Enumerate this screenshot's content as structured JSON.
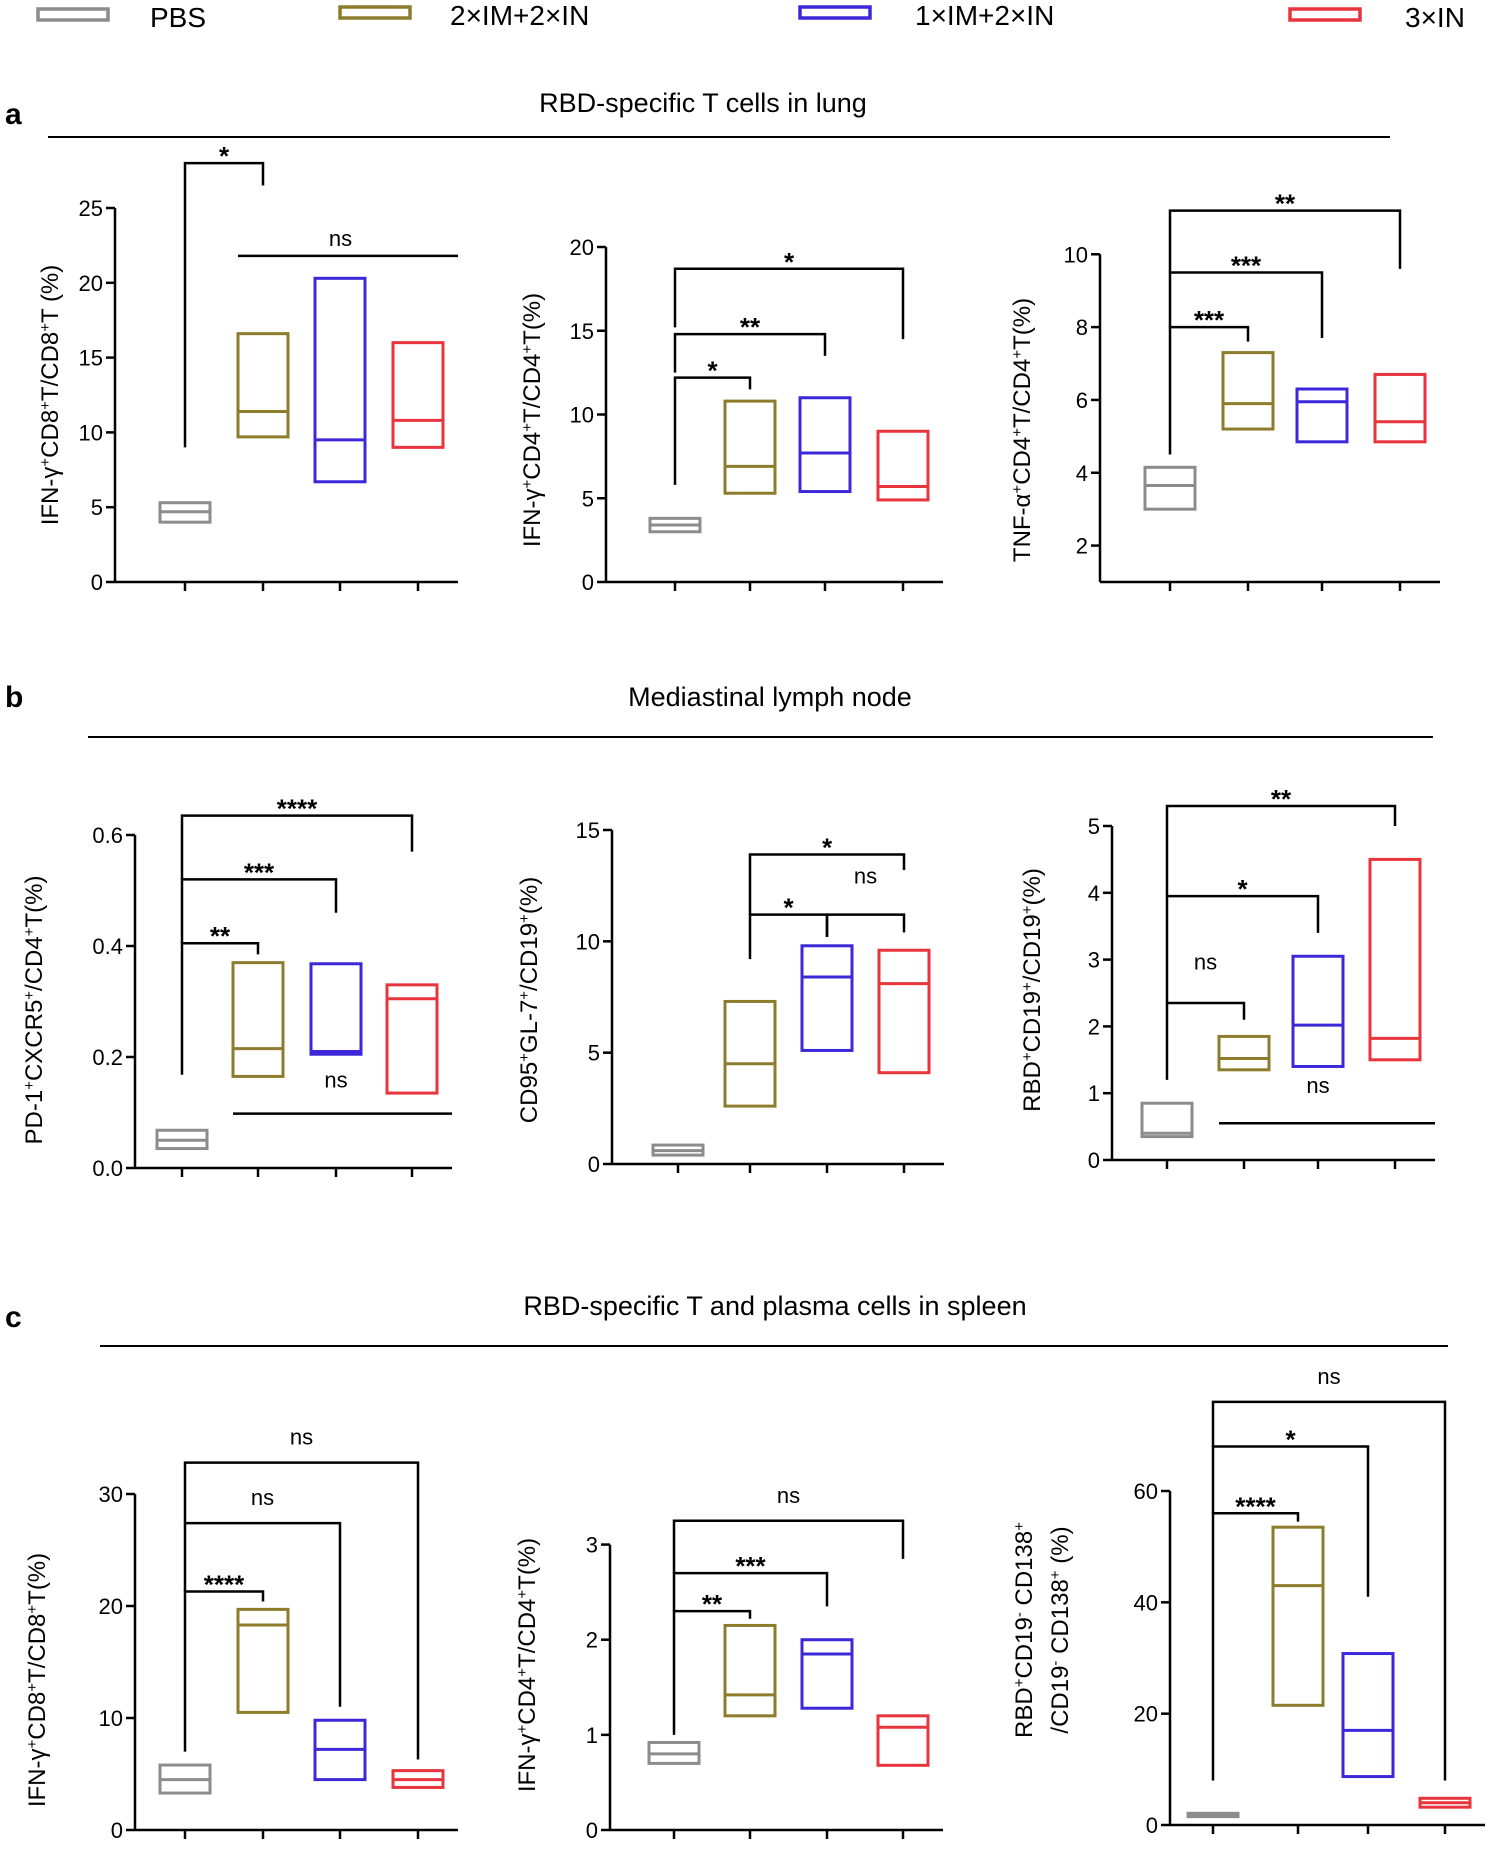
{
  "legend": [
    {
      "label": "PBS",
      "color": "#8c8c8c"
    },
    {
      "label": "2×IM+2×IN",
      "color": "#8c7c2c"
    },
    {
      "label": "1×IM+2×IN",
      "color": "#3c28d8"
    },
    {
      "label": "3×IN",
      "color": "#e8343c"
    }
  ],
  "sections": [
    {
      "letter": "a",
      "title": "RBD-specific T cells in lung"
    },
    {
      "letter": "b",
      "title": "Mediastinal lymph node"
    },
    {
      "letter": "c",
      "title": "RBD-specific T and plasma cells in spleen"
    }
  ],
  "chart_data": [
    {
      "type": "box",
      "panel": "a1",
      "groups": [
        "PBS",
        "2×IM+2×IN",
        "1×IM+2×IN",
        "3×IN"
      ],
      "ylabel": [
        {
          "t": "IFN-γ"
        },
        {
          "t": "+",
          "sup": true
        },
        {
          "t": "CD8"
        },
        {
          "t": "+",
          "sup": true
        },
        {
          "t": "T/CD8"
        },
        {
          "t": "+",
          "sup": true
        },
        {
          "t": "T (%)"
        }
      ],
      "ylim": [
        0,
        25
      ],
      "yticks": [
        0,
        5,
        10,
        15,
        20,
        25
      ],
      "tick_labels": [
        "0",
        "5",
        "10",
        "15",
        "20",
        "25"
      ],
      "boxes": [
        {
          "lo": 4.0,
          "med": 4.7,
          "hi": 5.3
        },
        {
          "lo": 9.7,
          "med": 11.4,
          "hi": 16.6
        },
        {
          "lo": 6.7,
          "med": 9.5,
          "hi": 20.3
        },
        {
          "lo": 9.0,
          "med": 10.8,
          "hi": 16.0
        }
      ],
      "comparisons": [
        {
          "from": 0,
          "to": 1,
          "level": 28.0,
          "label": "*",
          "down_to": [
            9.0,
            26.5
          ]
        },
        {
          "from": 1,
          "to": 3,
          "level": 21.8,
          "label": "ns",
          "line": true
        }
      ]
    },
    {
      "type": "box",
      "panel": "a2",
      "groups": [
        "PBS",
        "2×IM+2×IN",
        "1×IM+2×IN",
        "3×IN"
      ],
      "ylabel": [
        {
          "t": "IFN-γ"
        },
        {
          "t": "+",
          "sup": true
        },
        {
          "t": "CD4"
        },
        {
          "t": "+",
          "sup": true
        },
        {
          "t": "T/CD4"
        },
        {
          "t": "+",
          "sup": true
        },
        {
          "t": "T(%)"
        }
      ],
      "ylim": [
        0,
        20
      ],
      "yticks": [
        0,
        5,
        10,
        15,
        20
      ],
      "tick_labels": [
        "0",
        "5",
        "10",
        "15",
        "20"
      ],
      "boxes": [
        {
          "lo": 3.0,
          "med": 3.4,
          "hi": 3.8
        },
        {
          "lo": 5.3,
          "med": 6.9,
          "hi": 10.8
        },
        {
          "lo": 5.4,
          "med": 7.7,
          "hi": 11.0
        },
        {
          "lo": 4.9,
          "med": 5.7,
          "hi": 9.0
        }
      ],
      "comparisons": [
        {
          "from": 0,
          "to": 1,
          "level": 12.2,
          "label": "*",
          "down_to": [
            5.8,
            11.5
          ]
        },
        {
          "from": 0,
          "to": 2,
          "level": 14.8,
          "label": "**",
          "down_to": [
            12.5,
            13.5
          ]
        },
        {
          "from": 0,
          "to": 3,
          "level": 18.7,
          "label": "*",
          "down_to": [
            15.2,
            14.5
          ]
        }
      ]
    },
    {
      "type": "box",
      "panel": "a3",
      "groups": [
        "PBS",
        "2×IM+2×IN",
        "1×IM+2×IN",
        "3×IN"
      ],
      "ylabel": [
        {
          "t": "TNF-α"
        },
        {
          "t": "+",
          "sup": true
        },
        {
          "t": "CD4"
        },
        {
          "t": "+",
          "sup": true
        },
        {
          "t": "T/CD4"
        },
        {
          "t": "+",
          "sup": true
        },
        {
          "t": "T(%)"
        }
      ],
      "ylim": [
        1.0,
        10.2
      ],
      "yticks": [
        2,
        4,
        6,
        8,
        10
      ],
      "tick_labels": [
        "2",
        "4",
        "6",
        "8",
        "10"
      ],
      "boxes": [
        {
          "lo": 3.0,
          "med": 3.65,
          "hi": 4.15
        },
        {
          "lo": 5.2,
          "med": 5.9,
          "hi": 7.3
        },
        {
          "lo": 4.85,
          "med": 5.95,
          "hi": 6.3
        },
        {
          "lo": 4.85,
          "med": 5.4,
          "hi": 6.7
        }
      ],
      "comparisons": [
        {
          "from": 0,
          "to": 1,
          "level": 8.0,
          "label": "***",
          "down_to": [
            4.5,
            7.6
          ]
        },
        {
          "from": 0,
          "to": 2,
          "level": 9.5,
          "label": "***",
          "down_to": [
            8.0,
            7.7
          ]
        },
        {
          "from": 0,
          "to": 3,
          "level": 11.2,
          "label": "**",
          "down_to": [
            9.5,
            9.6
          ]
        }
      ]
    },
    {
      "type": "box",
      "panel": "b1",
      "groups": [
        "PBS",
        "2×IM+2×IN",
        "1×IM+2×IN",
        "3×IN"
      ],
      "ylabel": [
        {
          "t": "PD-1"
        },
        {
          "t": "+",
          "sup": true
        },
        {
          "t": "CXCR5"
        },
        {
          "t": "+",
          "sup": true
        },
        {
          "t": "/CD4"
        },
        {
          "t": "+",
          "sup": true
        },
        {
          "t": "T(%)"
        }
      ],
      "ylim": [
        0,
        0.6
      ],
      "yticks": [
        0,
        0.2,
        0.4,
        0.6
      ],
      "tick_labels": [
        "0.0",
        "0.2",
        "0.4",
        "0.6"
      ],
      "boxes": [
        {
          "lo": 0.035,
          "med": 0.05,
          "hi": 0.068
        },
        {
          "lo": 0.165,
          "med": 0.215,
          "hi": 0.37
        },
        {
          "lo": 0.205,
          "med": 0.21,
          "hi": 0.368
        },
        {
          "lo": 0.135,
          "med": 0.305,
          "hi": 0.33
        }
      ],
      "comparisons": [
        {
          "from": 0,
          "to": 1,
          "level": 0.405,
          "label": "**",
          "down_to": [
            0.168,
            0.385
          ]
        },
        {
          "from": 0,
          "to": 2,
          "level": 0.52,
          "label": "***",
          "down_to": [
            0.405,
            0.46
          ]
        },
        {
          "from": 0,
          "to": 3,
          "level": 0.635,
          "label": "****",
          "down_to": [
            0.52,
            0.57
          ]
        },
        {
          "from": 1,
          "to": 3,
          "level": 0.098,
          "label": "ns",
          "line": true,
          "label_at": 0.145,
          "label_x": 2
        }
      ]
    },
    {
      "type": "box",
      "panel": "b2",
      "groups": [
        "PBS",
        "2×IM+2×IN",
        "1×IM+2×IN",
        "3×IN"
      ],
      "ylabel": [
        {
          "t": "CD95"
        },
        {
          "t": "+",
          "sup": true
        },
        {
          "t": "GL-7"
        },
        {
          "t": "+",
          "sup": true
        },
        {
          "t": "/CD19"
        },
        {
          "t": "+",
          "sup": true
        },
        {
          "t": "(%)"
        }
      ],
      "ylim": [
        0,
        15
      ],
      "yticks": [
        0,
        5,
        10,
        15
      ],
      "tick_labels": [
        "0",
        "5",
        "10",
        "15"
      ],
      "boxes": [
        {
          "lo": 0.4,
          "med": 0.6,
          "hi": 0.85
        },
        {
          "lo": 2.6,
          "med": 4.5,
          "hi": 7.3
        },
        {
          "lo": 5.1,
          "med": 8.4,
          "hi": 9.8
        },
        {
          "lo": 4.1,
          "med": 8.1,
          "hi": 9.6
        }
      ],
      "comparisons": [
        {
          "from": 1,
          "to": 2,
          "level": 11.2,
          "label": "*",
          "down_to": [
            9.2,
            10.2
          ]
        },
        {
          "from": 2,
          "to": 3,
          "level": 11.2,
          "label": "ns",
          "down_to": [
            10.2,
            10.4
          ],
          "label_y": 12.6
        },
        {
          "from": 1,
          "to": 3,
          "level": 13.9,
          "label": "*",
          "down_to": [
            11.2,
            13.2
          ]
        }
      ]
    },
    {
      "type": "box",
      "panel": "b3",
      "groups": [
        "PBS",
        "2×IM+2×IN",
        "1×IM+2×IN",
        "3×IN"
      ],
      "ylabel": [
        {
          "t": "RBD"
        },
        {
          "t": "+",
          "sup": true
        },
        {
          "t": "CD19"
        },
        {
          "t": "+",
          "sup": true
        },
        {
          "t": "/CD19"
        },
        {
          "t": "+",
          "sup": true
        },
        {
          "t": "(%)"
        }
      ],
      "ylim": [
        0,
        5
      ],
      "yticks": [
        0,
        1,
        2,
        3,
        4,
        5
      ],
      "tick_labels": [
        "0",
        "1",
        "2",
        "3",
        "4",
        "5"
      ],
      "boxes": [
        {
          "lo": 0.35,
          "med": 0.4,
          "hi": 0.85
        },
        {
          "lo": 1.35,
          "med": 1.52,
          "hi": 1.85
        },
        {
          "lo": 1.4,
          "med": 2.02,
          "hi": 3.05
        },
        {
          "lo": 1.5,
          "med": 1.82,
          "hi": 4.5
        }
      ],
      "comparisons": [
        {
          "from": 0,
          "to": 1,
          "level": 2.35,
          "label": "ns",
          "down_to": [
            1.2,
            2.1
          ],
          "label_y": 2.85
        },
        {
          "from": 0,
          "to": 2,
          "level": 3.95,
          "label": "*",
          "down_to": [
            2.35,
            3.4
          ]
        },
        {
          "from": 0,
          "to": 3,
          "level": 5.3,
          "label": "**",
          "down_to": [
            3.95,
            5.0
          ]
        },
        {
          "from": 1,
          "to": 3,
          "level": 0.55,
          "label": "ns",
          "line": true,
          "label_at": 1.0,
          "label_x": 2
        }
      ]
    },
    {
      "type": "box",
      "panel": "c1",
      "groups": [
        "PBS",
        "2×IM+2×IN",
        "1×IM+2×IN",
        "3×IN"
      ],
      "ylabel": [
        {
          "t": "IFN-γ"
        },
        {
          "t": "+",
          "sup": true
        },
        {
          "t": "CD8"
        },
        {
          "t": "+",
          "sup": true
        },
        {
          "t": "T/CD8"
        },
        {
          "t": "+",
          "sup": true
        },
        {
          "t": "T(%)"
        }
      ],
      "ylim": [
        0,
        30
      ],
      "yticks": [
        0,
        10,
        20,
        30
      ],
      "tick_labels": [
        "0",
        "10",
        "20",
        "30"
      ],
      "boxes": [
        {
          "lo": 3.3,
          "med": 4.5,
          "hi": 5.8
        },
        {
          "lo": 10.5,
          "med": 18.3,
          "hi": 19.7
        },
        {
          "lo": 4.5,
          "med": 7.2,
          "hi": 9.8
        },
        {
          "lo": 3.8,
          "med": 4.5,
          "hi": 5.3
        }
      ],
      "comparisons": [
        {
          "from": 0,
          "to": 1,
          "level": 21.3,
          "label": "****",
          "down_to": [
            7.0,
            20.4
          ]
        },
        {
          "from": 0,
          "to": 2,
          "level": 27.4,
          "label": "ns",
          "down_to": [
            21.3,
            11.0
          ]
        },
        {
          "from": 0,
          "to": 3,
          "level": 32.8,
          "label": "ns",
          "down_to": [
            27.4,
            6.3
          ]
        }
      ]
    },
    {
      "type": "box",
      "panel": "c2",
      "groups": [
        "PBS",
        "2×IM+2×IN",
        "1×IM+2×IN",
        "3×IN"
      ],
      "ylabel": [
        {
          "t": "IFN-γ"
        },
        {
          "t": "+",
          "sup": true
        },
        {
          "t": "CD4"
        },
        {
          "t": "+",
          "sup": true
        },
        {
          "t": "T/CD4"
        },
        {
          "t": "+",
          "sup": true
        },
        {
          "t": "T(%)"
        }
      ],
      "ylim": [
        0,
        3.5
      ],
      "yticks": [
        0,
        1,
        2,
        3
      ],
      "tick_labels": [
        "0",
        "1",
        "2",
        "3"
      ],
      "boxes": [
        {
          "lo": 0.7,
          "med": 0.8,
          "hi": 0.92
        },
        {
          "lo": 1.2,
          "med": 1.42,
          "hi": 2.15
        },
        {
          "lo": 1.28,
          "med": 1.85,
          "hi": 2.0
        },
        {
          "lo": 0.68,
          "med": 1.08,
          "hi": 1.2
        }
      ],
      "comparisons": [
        {
          "from": 0,
          "to": 1,
          "level": 2.3,
          "label": "**",
          "down_to": [
            1.0,
            2.22
          ]
        },
        {
          "from": 0,
          "to": 2,
          "level": 2.7,
          "label": "***",
          "down_to": [
            2.3,
            2.35
          ]
        },
        {
          "from": 0,
          "to": 3,
          "level": 3.25,
          "label": "ns",
          "down_to": [
            2.7,
            2.85
          ]
        }
      ]
    },
    {
      "type": "box",
      "panel": "c3",
      "groups": [
        "PBS",
        "2×IM+2×IN",
        "1×IM+2×IN",
        "3×IN"
      ],
      "ylabel": [
        {
          "t": "RBD"
        },
        {
          "t": "+",
          "sup": true
        },
        {
          "t": "CD19"
        },
        {
          "t": "-",
          "sup": true
        },
        {
          "t": " CD138"
        },
        {
          "t": "+",
          "sup": true
        }
      ],
      "ylabel2": [
        {
          "t": "/CD19"
        },
        {
          "t": "-",
          "sup": true
        },
        {
          "t": " CD138"
        },
        {
          "t": "+",
          "sup": true
        },
        {
          "t": " (%)"
        }
      ],
      "ylim": [
        0,
        60
      ],
      "yticks": [
        0,
        20,
        40,
        60
      ],
      "tick_labels": [
        "0",
        "20",
        "40",
        "60"
      ],
      "boxes": [
        {
          "lo": 1.5,
          "med": 1.8,
          "hi": 2.1
        },
        {
          "lo": 21.5,
          "med": 43.0,
          "hi": 53.5
        },
        {
          "lo": 8.7,
          "med": 17.0,
          "hi": 30.8
        },
        {
          "lo": 3.2,
          "med": 4.0,
          "hi": 4.8
        }
      ],
      "comparisons": [
        {
          "from": 0,
          "to": 1,
          "level": 56.0,
          "label": "****",
          "down_to": [
            8.0,
            54.5
          ]
        },
        {
          "from": 0,
          "to": 2,
          "level": 68.0,
          "label": "*",
          "down_to": [
            56.0,
            41.0
          ]
        },
        {
          "from": 0,
          "to": 3,
          "level": 76.0,
          "label": "ns",
          "down_to": [
            68.0,
            8.0
          ]
        }
      ]
    }
  ]
}
